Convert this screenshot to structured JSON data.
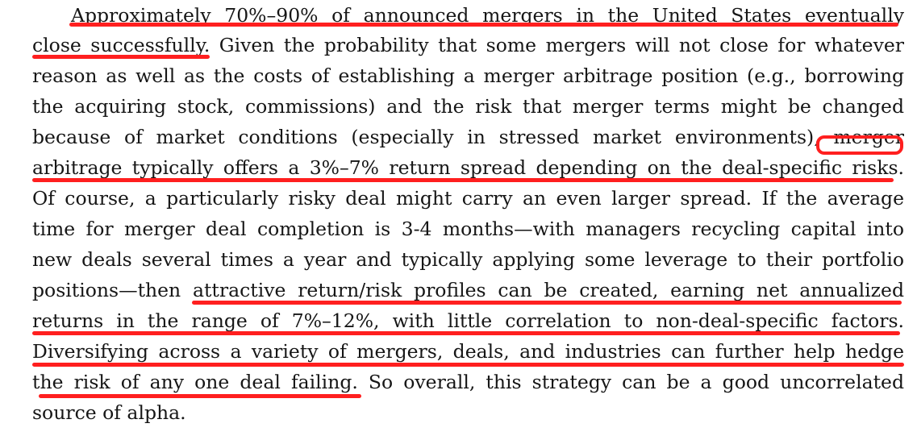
{
  "document": {
    "lines": [
      "Approximately 70%–90% of announced mergers in the United States eventually",
      "close successfully. Given the probability that some mergers will not close for whatever",
      "reason as well as the costs of establishing a merger arbitrage position (e.g., borrowing",
      "the acquiring stock, commissions) and the risk that merger terms might be changed",
      "because of market conditions (especially in stressed market environments), merger",
      "arbitrage typically offers a 3%–7% return spread depending on the deal-specific risks.",
      "Of course, a particularly risky deal might carry an even larger spread. If the average",
      "time for merger deal completion is 3-4 months—with managers recycling capital into",
      "new deals several times a year and typically applying some leverage to their portfolio",
      "positions—then attractive return/risk profiles can be created, earning net annualized",
      "returns in the range of 7%–12%, with little correlation to non-deal-specific factors.",
      "Diversifying across a variety of mergers, deals, and industries can further help hedge",
      "the risk of any one deal failing. So overall, this strategy can be a good uncorrelated",
      "source of alpha."
    ]
  },
  "annotations": {
    "color": "#ff1f1f"
  }
}
